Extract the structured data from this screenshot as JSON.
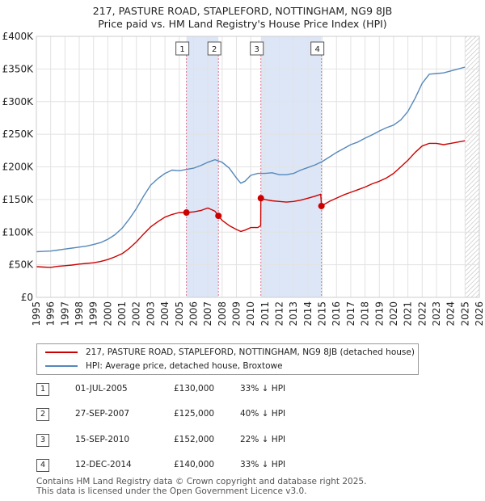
{
  "header": {
    "title": "217, PASTURE ROAD, STAPLEFORD, NOTTINGHAM, NG9 8JB",
    "subtitle": "Price paid vs. HM Land Registry's House Price Index (HPI)"
  },
  "chart_data": {
    "type": "line",
    "title": "217, PASTURE ROAD, STAPLEFORD, NOTTINGHAM, NG9 8JB",
    "subtitle": "Price paid vs. HM Land Registry's House Price Index (HPI)",
    "xlabel": "",
    "ylabel": "",
    "xlim": [
      1995,
      2026
    ],
    "ylim": [
      0,
      400000
    ],
    "y_ticks": [
      0,
      50000,
      100000,
      150000,
      200000,
      250000,
      300000,
      350000,
      400000
    ],
    "y_tick_labels": [
      "£0",
      "£50K",
      "£100K",
      "£150K",
      "£200K",
      "£250K",
      "£300K",
      "£350K",
      "£400K"
    ],
    "x_ticks": [
      1995,
      1996,
      1997,
      1998,
      1999,
      2000,
      2001,
      2002,
      2003,
      2004,
      2005,
      2006,
      2007,
      2008,
      2009,
      2010,
      2011,
      2012,
      2013,
      2014,
      2015,
      2016,
      2017,
      2018,
      2019,
      2020,
      2021,
      2022,
      2023,
      2024,
      2025,
      2026
    ],
    "grid": true,
    "hatched_from": 2025.0,
    "highlight_spans": [
      [
        2005.5,
        2007.74
      ],
      [
        2010.71,
        2014.95
      ]
    ],
    "colors": {
      "property": "#cc0000",
      "hpi": "#5588bb",
      "span": "#dde6f7",
      "vline": "#e0708a",
      "hatch": "#bbbbbb"
    },
    "series": [
      {
        "name": "217, PASTURE ROAD, STAPLEFORD, NOTTINGHAM, NG9 8JB (detached house)",
        "color": "#cc0000",
        "x": [
          1995.0,
          1995.5,
          1996.0,
          1996.5,
          1997.0,
          1997.5,
          1998.0,
          1998.5,
          1999.0,
          1999.5,
          2000.0,
          2000.5,
          2001.0,
          2001.5,
          2002.0,
          2002.5,
          2003.0,
          2003.5,
          2004.0,
          2004.5,
          2005.0,
          2005.5,
          2006.0,
          2006.5,
          2007.0,
          2007.5,
          2007.74,
          2008.0,
          2008.5,
          2009.0,
          2009.3,
          2009.6,
          2010.0,
          2010.5,
          2010.7,
          2010.71,
          2011.0,
          2011.5,
          2012.0,
          2012.5,
          2013.0,
          2013.5,
          2014.0,
          2014.5,
          2014.9,
          2014.95,
          2015.5,
          2016.0,
          2016.5,
          2017.0,
          2017.5,
          2018.0,
          2018.5,
          2019.0,
          2019.5,
          2020.0,
          2020.5,
          2021.0,
          2021.5,
          2022.0,
          2022.5,
          2023.0,
          2023.5,
          2024.0,
          2024.5,
          2025.0
        ],
        "values": [
          47000,
          46500,
          46000,
          47500,
          48500,
          49500,
          51000,
          52000,
          53000,
          55000,
          58000,
          62000,
          67000,
          75000,
          85000,
          97000,
          108000,
          116000,
          123000,
          127000,
          130000,
          130000,
          131000,
          133000,
          137000,
          132000,
          125000,
          118000,
          110000,
          104000,
          101000,
          103000,
          107000,
          107000,
          110000,
          152000,
          150000,
          148000,
          147000,
          146000,
          147000,
          149000,
          152000,
          155000,
          158000,
          140000,
          147000,
          152000,
          157000,
          161000,
          165000,
          169000,
          174000,
          178000,
          183000,
          190000,
          200000,
          210000,
          222000,
          232000,
          236000,
          236000,
          234000,
          236000,
          238000,
          240000
        ]
      },
      {
        "name": "HPI: Average price, detached house, Broxtowe",
        "color": "#5588bb",
        "x": [
          1995.0,
          1995.5,
          1996.0,
          1996.5,
          1997.0,
          1997.5,
          1998.0,
          1998.5,
          1999.0,
          1999.5,
          2000.0,
          2000.5,
          2001.0,
          2001.5,
          2002.0,
          2002.5,
          2003.0,
          2003.5,
          2004.0,
          2004.5,
          2005.0,
          2005.5,
          2006.0,
          2006.5,
          2007.0,
          2007.5,
          2008.0,
          2008.5,
          2009.0,
          2009.3,
          2009.6,
          2010.0,
          2010.5,
          2011.0,
          2011.5,
          2012.0,
          2012.5,
          2013.0,
          2013.5,
          2014.0,
          2014.5,
          2015.0,
          2015.5,
          2016.0,
          2016.5,
          2017.0,
          2017.5,
          2018.0,
          2018.5,
          2019.0,
          2019.5,
          2020.0,
          2020.5,
          2021.0,
          2021.5,
          2022.0,
          2022.5,
          2023.0,
          2023.5,
          2024.0,
          2024.5,
          2025.0
        ],
        "values": [
          70000,
          70500,
          71000,
          72500,
          74000,
          75500,
          77000,
          78500,
          81000,
          84000,
          89000,
          96000,
          106000,
          120000,
          136000,
          155000,
          172000,
          182000,
          190000,
          195000,
          194000,
          196000,
          198000,
          202000,
          207000,
          211000,
          207000,
          198000,
          183000,
          175000,
          178000,
          187000,
          190000,
          190000,
          191000,
          188000,
          188000,
          190000,
          195000,
          199000,
          203000,
          208000,
          215000,
          222000,
          228000,
          234000,
          238000,
          244000,
          249000,
          255000,
          260000,
          264000,
          272000,
          285000,
          305000,
          328000,
          342000,
          343000,
          344000,
          347000,
          350000,
          353000
        ]
      }
    ],
    "sales": [
      {
        "label": "1",
        "x": 2005.5,
        "value": 130000
      },
      {
        "label": "2",
        "x": 2007.74,
        "value": 125000
      },
      {
        "label": "3",
        "x": 2010.71,
        "value": 152000
      },
      {
        "label": "4",
        "x": 2014.95,
        "value": 140000
      }
    ]
  },
  "legend": {
    "property_label": "217, PASTURE ROAD, STAPLEFORD, NOTTINGHAM, NG9 8JB (detached house)",
    "hpi_label": "HPI: Average price, detached house, Broxtowe"
  },
  "sales_table": [
    {
      "num": "1",
      "date": "01-JUL-2005",
      "price": "£130,000",
      "delta": "33% ↓ HPI"
    },
    {
      "num": "2",
      "date": "27-SEP-2007",
      "price": "£125,000",
      "delta": "40% ↓ HPI"
    },
    {
      "num": "3",
      "date": "15-SEP-2010",
      "price": "£152,000",
      "delta": "22% ↓ HPI"
    },
    {
      "num": "4",
      "date": "12-DEC-2014",
      "price": "£140,000",
      "delta": "33% ↓ HPI"
    }
  ],
  "footer": {
    "line1": "Contains HM Land Registry data © Crown copyright and database right 2025.",
    "line2": "This data is licensed under the Open Government Licence v3.0."
  }
}
